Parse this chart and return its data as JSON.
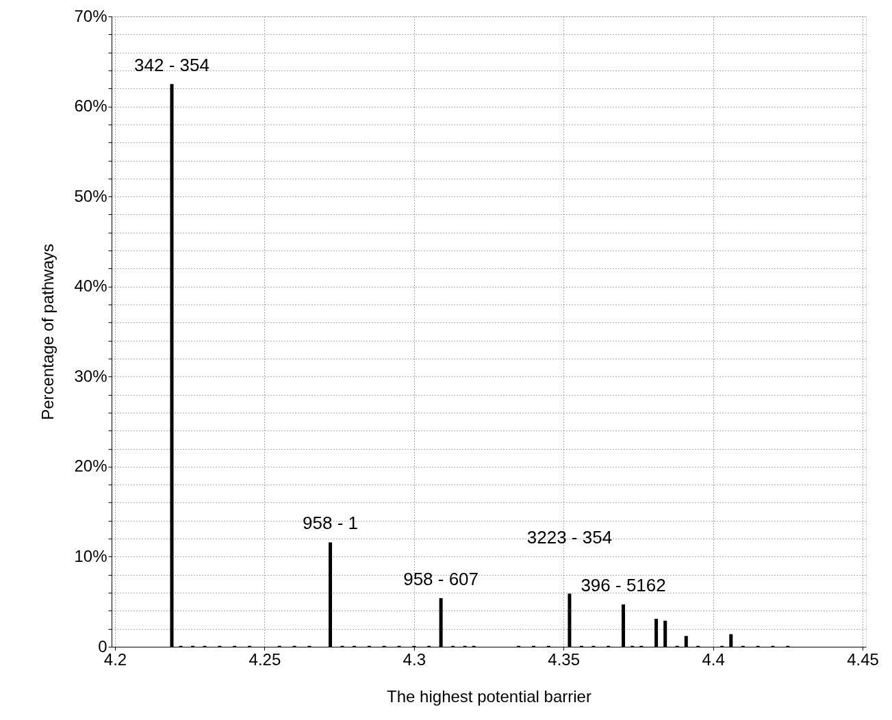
{
  "chart_data": {
    "type": "bar",
    "xlabel": "The highest potential barrier",
    "ylabel": "Percentage of pathways",
    "x": [
      4.219,
      4.222,
      4.226,
      4.23,
      4.235,
      4.24,
      4.245,
      4.255,
      4.26,
      4.265,
      4.272,
      4.276,
      4.28,
      4.285,
      4.29,
      4.295,
      4.3,
      4.305,
      4.309,
      4.313,
      4.317,
      4.32,
      4.335,
      4.34,
      4.345,
      4.352,
      4.356,
      4.36,
      4.365,
      4.37,
      4.373,
      4.376,
      4.381,
      4.384,
      4.388,
      4.391,
      4.395,
      4.403,
      4.406,
      4.41,
      4.415,
      4.42,
      4.425
    ],
    "series": [
      {
        "color": "#000000",
        "values": [
          62.5,
          0.1,
          0.1,
          0.1,
          0.1,
          0.1,
          0.1,
          0.1,
          0.1,
          0.1,
          11.6,
          0.1,
          0.1,
          0.1,
          0.1,
          0.1,
          0.1,
          0.1,
          5.4,
          0.1,
          0.1,
          0.1,
          0.1,
          0.1,
          0.1,
          5.9,
          0.1,
          0.1,
          0.1,
          4.7,
          0.1,
          0.1,
          3.1,
          2.9,
          0.1,
          1.2,
          0.1,
          0.1,
          1.4,
          0.1,
          0.1,
          0.1,
          0.1
        ]
      }
    ],
    "xlim": [
      4.2,
      4.45
    ],
    "xticks": [
      4.2,
      4.25,
      4.3,
      4.35,
      4.4,
      4.45
    ],
    "ylim": [
      0,
      70
    ],
    "yticks": [
      0,
      {
        "value": 2,
        "label": null
      },
      {
        "value": 4,
        "label": null
      },
      {
        "value": 6,
        "label": null
      },
      {
        "value": 8,
        "label": null
      },
      {
        "value": 10,
        "label": "10%"
      },
      {
        "value": 12,
        "label": null
      },
      {
        "value": 14,
        "label": null
      },
      {
        "value": 16,
        "label": null
      },
      {
        "value": 18,
        "label": null
      },
      {
        "value": 20,
        "label": "20%"
      },
      {
        "value": 22,
        "label": null
      },
      {
        "value": 24,
        "label": null
      },
      {
        "value": 26,
        "label": null
      },
      {
        "value": 28,
        "label": null
      },
      {
        "value": 30,
        "label": "30%"
      },
      {
        "value": 32,
        "label": null
      },
      {
        "value": 34,
        "label": null
      },
      {
        "value": 36,
        "label": null
      },
      {
        "value": 38,
        "label": null
      },
      {
        "value": 40,
        "label": "40%"
      },
      {
        "value": 42,
        "label": null
      },
      {
        "value": 44,
        "label": null
      },
      {
        "value": 46,
        "label": null
      },
      {
        "value": 48,
        "label": null
      },
      {
        "value": 50,
        "label": "50%"
      },
      {
        "value": 52,
        "label": null
      },
      {
        "value": 54,
        "label": null
      },
      {
        "value": 56,
        "label": null
      },
      {
        "value": 58,
        "label": null
      },
      {
        "value": 60,
        "label": "60%"
      },
      {
        "value": 62,
        "label": null
      },
      {
        "value": 64,
        "label": null
      },
      {
        "value": 66,
        "label": null
      },
      {
        "value": 68,
        "label": null
      },
      {
        "value": 70,
        "label": "70%"
      }
    ],
    "grid": true,
    "annotations": [
      {
        "text": "342 - 354",
        "x": 4.219,
        "y": 62.5
      },
      {
        "text": "958 - 1",
        "x": 4.272,
        "y": 11.6
      },
      {
        "text": "958 - 607",
        "x": 4.309,
        "y": 5.4
      },
      {
        "text": "3223 - 354",
        "x": 4.352,
        "y": 5.9
      },
      {
        "text": "396 - 5162",
        "x": 4.37,
        "y": 4.7
      }
    ]
  }
}
